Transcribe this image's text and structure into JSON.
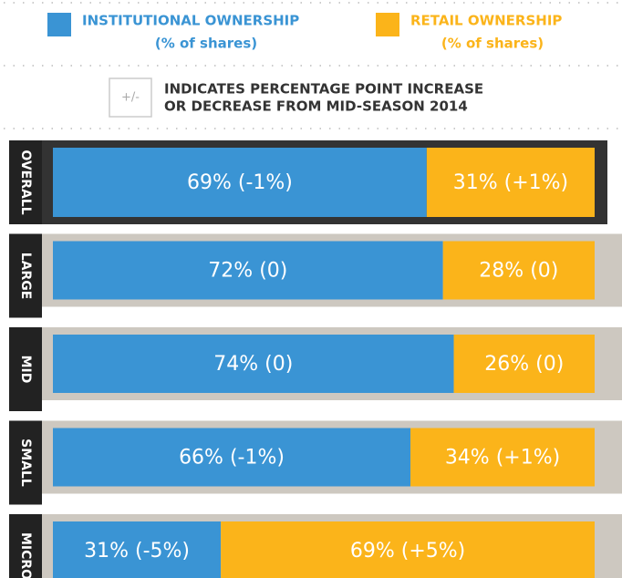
{
  "chart_data": {
    "type": "stacked_bar_horizontal",
    "categories": [
      "OVERALL",
      "LARGE",
      "MID",
      "SMALL",
      "MICRO"
    ],
    "series": [
      {
        "name": "INSTITUTIONAL OWNERSHIP",
        "subtitle": "(% of shares)",
        "color": "#3a94d4",
        "values": [
          69,
          72,
          74,
          66,
          31
        ],
        "value_labels": [
          "69% (-1%)",
          "72% (0)",
          "74% (0)",
          "66% (-1%)",
          "31% (-5%)"
        ]
      },
      {
        "name": "RETAIL OWNERSHIP",
        "subtitle": "(% of shares)",
        "color": "#fbb41a",
        "values": [
          31,
          28,
          26,
          34,
          69
        ],
        "value_labels": [
          "31% (+1%)",
          "28% (0)",
          "26% (0)",
          "34% (+1%)",
          "69% (+5%)"
        ]
      }
    ],
    "xlim": [
      0,
      100
    ],
    "note": {
      "symbol": "+/-",
      "lines": [
        "INDICATES PERCENTAGE POINT INCREASE",
        "OR DECREASE FROM MID-SEASON 2014"
      ]
    }
  }
}
